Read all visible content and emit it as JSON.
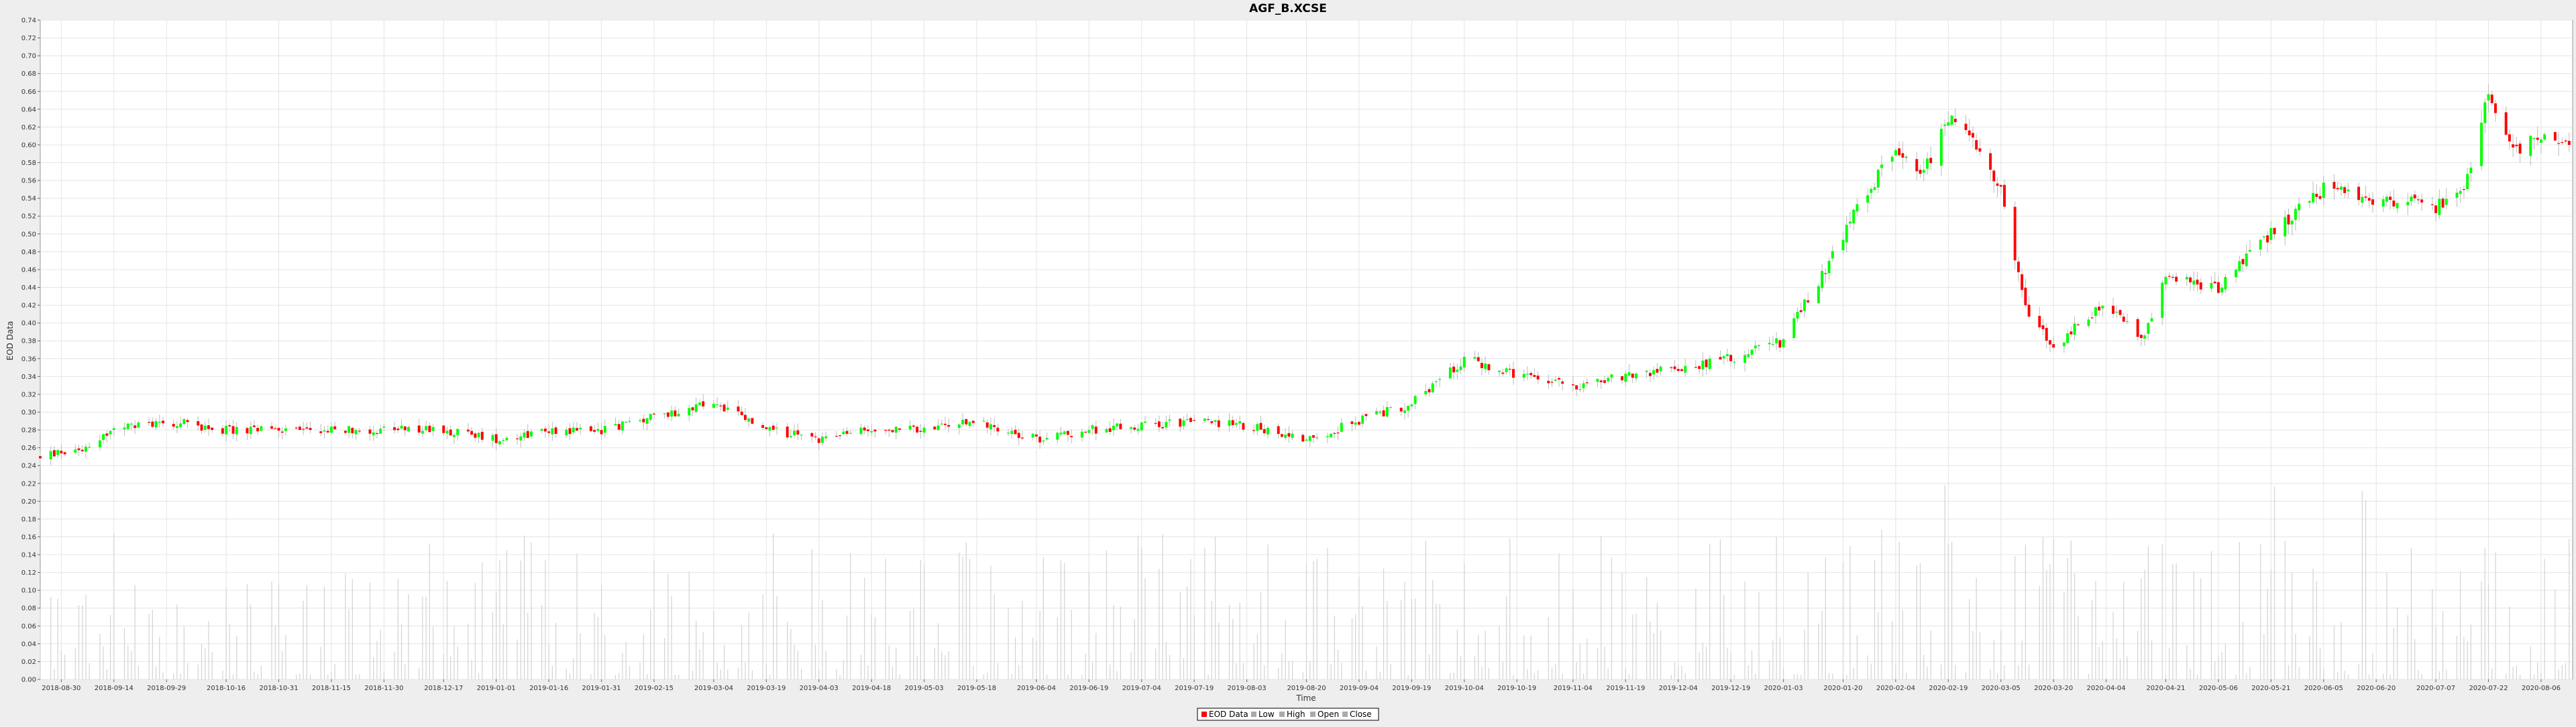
{
  "chart_data": {
    "type": "candlestick",
    "title": "AGF_B.XCSE",
    "xlabel": "Time",
    "ylabel": "EOD Data",
    "ylim": [
      0,
      0.74
    ],
    "yticks": [
      "0.00",
      "0.02",
      "0.04",
      "0.06",
      "0.08",
      "0.10",
      "0.12",
      "0.14",
      "0.16",
      "0.18",
      "0.20",
      "0.22",
      "0.24",
      "0.26",
      "0.28",
      "0.30",
      "0.32",
      "0.34",
      "0.36",
      "0.38",
      "0.40",
      "0.42",
      "0.44",
      "0.46",
      "0.48",
      "0.50",
      "0.52",
      "0.54",
      "0.56",
      "0.58",
      "0.60",
      "0.62",
      "0.64",
      "0.66",
      "0.68",
      "0.70",
      "0.72",
      "0.74"
    ],
    "xlim": [
      "2018-08-24",
      "2020-08-15"
    ],
    "xticks": [
      "2018-08-30",
      "2018-09-14",
      "2018-09-29",
      "2018-10-16",
      "2018-10-31",
      "2018-11-15",
      "2018-11-30",
      "2018-12-17",
      "2019-01-01",
      "2019-01-16",
      "2019-01-31",
      "2019-02-15",
      "2019-03-04",
      "2019-03-19",
      "2019-04-03",
      "2019-04-18",
      "2019-05-03",
      "2019-05-18",
      "2019-06-04",
      "2019-06-19",
      "2019-07-04",
      "2019-07-19",
      "2019-08-03",
      "2019-08-20",
      "2019-09-04",
      "2019-09-19",
      "2019-10-04",
      "2019-10-19",
      "2019-11-04",
      "2019-11-19",
      "2019-12-04",
      "2019-12-19",
      "2020-01-03",
      "2020-01-20",
      "2020-02-04",
      "2020-02-19",
      "2020-03-05",
      "2020-03-20",
      "2020-04-04",
      "2020-04-21",
      "2020-05-06",
      "2020-05-21",
      "2020-06-05",
      "2020-06-20",
      "2020-07-07",
      "2020-07-22",
      "2020-08-06"
    ],
    "grid": true,
    "legend": {
      "position": "bottom-center",
      "entries": [
        {
          "label": "EOD Data",
          "color": "#ff0000"
        },
        {
          "label": "Low",
          "color": "#aaaaaa"
        },
        {
          "label": "High",
          "color": "#aaaaaa"
        },
        {
          "label": "Open",
          "color": "#aaaaaa"
        },
        {
          "label": "Close",
          "color": "#aaaaaa"
        }
      ]
    },
    "colors": {
      "up": "#00ff00",
      "down": "#ff0000",
      "volume": "#d3d3d3"
    },
    "price_path": [
      [
        "2018-08-24",
        0.25
      ],
      [
        "2018-09-05",
        0.26
      ],
      [
        "2018-09-14",
        0.28
      ],
      [
        "2018-09-29",
        0.29
      ],
      [
        "2018-10-16",
        0.28
      ],
      [
        "2018-10-31",
        0.28
      ],
      [
        "2018-11-15",
        0.28
      ],
      [
        "2018-11-30",
        0.28
      ],
      [
        "2018-12-17",
        0.28
      ],
      [
        "2019-01-01",
        0.27
      ],
      [
        "2019-01-16",
        0.28
      ],
      [
        "2019-01-31",
        0.28
      ],
      [
        "2019-02-15",
        0.295
      ],
      [
        "2019-03-04",
        0.31
      ],
      [
        "2019-03-19",
        0.28
      ],
      [
        "2019-04-03",
        0.27
      ],
      [
        "2019-04-18",
        0.28
      ],
      [
        "2019-05-03",
        0.28
      ],
      [
        "2019-05-18",
        0.29
      ],
      [
        "2019-06-04",
        0.27
      ],
      [
        "2019-06-19",
        0.28
      ],
      [
        "2019-07-04",
        0.285
      ],
      [
        "2019-07-19",
        0.29
      ],
      [
        "2019-08-03",
        0.285
      ],
      [
        "2019-08-20",
        0.27
      ],
      [
        "2019-09-04",
        0.29
      ],
      [
        "2019-09-19",
        0.31
      ],
      [
        "2019-10-04",
        0.36
      ],
      [
        "2019-10-19",
        0.34
      ],
      [
        "2019-11-04",
        0.33
      ],
      [
        "2019-11-19",
        0.34
      ],
      [
        "2019-12-04",
        0.35
      ],
      [
        "2019-12-19",
        0.36
      ],
      [
        "2020-01-03",
        0.38
      ],
      [
        "2020-01-15",
        0.46
      ],
      [
        "2020-01-20",
        0.5
      ],
      [
        "2020-02-04",
        0.6
      ],
      [
        "2020-02-12",
        0.57
      ],
      [
        "2020-02-19",
        0.63
      ],
      [
        "2020-02-26",
        0.6
      ],
      [
        "2020-03-05",
        0.55
      ],
      [
        "2020-03-12",
        0.42
      ],
      [
        "2020-03-20",
        0.37
      ],
      [
        "2020-03-27",
        0.4
      ],
      [
        "2020-04-04",
        0.42
      ],
      [
        "2020-04-14",
        0.38
      ],
      [
        "2020-04-21",
        0.45
      ],
      [
        "2020-05-06",
        0.44
      ],
      [
        "2020-05-21",
        0.5
      ],
      [
        "2020-06-05",
        0.55
      ],
      [
        "2020-06-20",
        0.54
      ],
      [
        "2020-07-07",
        0.53
      ],
      [
        "2020-07-16",
        0.56
      ],
      [
        "2020-07-22",
        0.66
      ],
      [
        "2020-07-29",
        0.59
      ],
      [
        "2020-08-06",
        0.61
      ],
      [
        "2020-08-15",
        0.605
      ]
    ]
  }
}
